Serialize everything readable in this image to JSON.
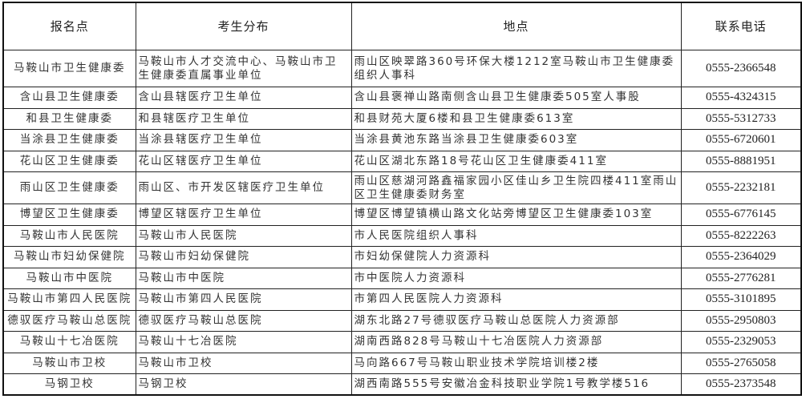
{
  "headers": [
    "报名点",
    "考生分布",
    "地点",
    "联系电话"
  ],
  "rows": [
    {
      "site": "马鞍山市卫生健康委",
      "applicants": "马鞍山市人才交流中心、马鞍山市卫生健康委直属事业单位",
      "address": "雨山区映翠路360号环保大楼1212室马鞍山市卫生健康委组织人事科",
      "phone": "0555-2366548"
    },
    {
      "site": "含山县卫生健康委",
      "applicants": "含山县辖医疗卫生单位",
      "address": "含山县褒禅山路南侧含山县卫生健康委505室人事股",
      "phone": "0555-4324315"
    },
    {
      "site": "和县卫生健康委",
      "applicants": "和县辖医疗卫生单位",
      "address": "和县财苑大厦6楼和县卫生健康委613室",
      "phone": "0555-5312733"
    },
    {
      "site": "当涂县卫生健康委",
      "applicants": "当涂县辖医疗卫生单位",
      "address": "当涂县黄池东路当涂县卫生健康委603室",
      "phone": "0555-6720601"
    },
    {
      "site": "花山区卫生健康委",
      "applicants": "花山区辖医疗卫生单位",
      "address": "花山区湖北东路18号花山区卫生健康委411室",
      "phone": "0555-8881951"
    },
    {
      "site": "雨山区卫生健康委",
      "applicants": "雨山区、市开发区辖医疗卫生单位",
      "address": "雨山区慈湖河路鑫福家园小区佳山乡卫生院四楼411室雨山区卫生健康委财务室",
      "phone": "0555-2232181"
    },
    {
      "site": "博望区卫生健康委",
      "applicants": "博望区辖医疗卫生单位",
      "address": "博望区博望镇横山路文化站旁博望区卫生健康委103室",
      "phone": "0555-6776145"
    },
    {
      "site": "马鞍山市人民医院",
      "applicants": "马鞍山市人民医院",
      "address": "市人民医院组织人事科",
      "phone": "0555-8222263"
    },
    {
      "site": "马鞍山市妇幼保健院",
      "applicants": "马鞍山市妇幼保健院",
      "address": "市妇幼保健院人力资源科",
      "phone": "0555-2364029"
    },
    {
      "site": "马鞍山市中医院",
      "applicants": "马鞍山市中医院",
      "address": "市中医院人力资源科",
      "phone": "0555-2776281"
    },
    {
      "site": "马鞍山市第四人民医院",
      "applicants": "马鞍山市第四人民医院",
      "address": "市第四人民医院人力资源科",
      "phone": "0555-3101895"
    },
    {
      "site": "德驭医疗马鞍山总医院",
      "applicants": "德驭医疗马鞍山总医院",
      "address": "湖东北路27号德驭医疗马鞍山总医院人力资源部",
      "phone": "0555-2950803"
    },
    {
      "site": "马鞍山十七冶医院",
      "applicants": "马鞍山十七冶医院",
      "address": "湖南西路828号马鞍山十七冶医院人力资源部",
      "phone": "0555-2329053"
    },
    {
      "site": "马鞍山市卫校",
      "applicants": "马鞍山市卫校",
      "address": "马向路667号马鞍山职业技术学院培训楼2楼",
      "phone": "0555-2765058"
    },
    {
      "site": "马钢卫校",
      "applicants": "马钢卫校",
      "address": "湖西南路555号安徽冶金科技职业学院1号教学楼516",
      "phone": "0555-2373548"
    }
  ]
}
